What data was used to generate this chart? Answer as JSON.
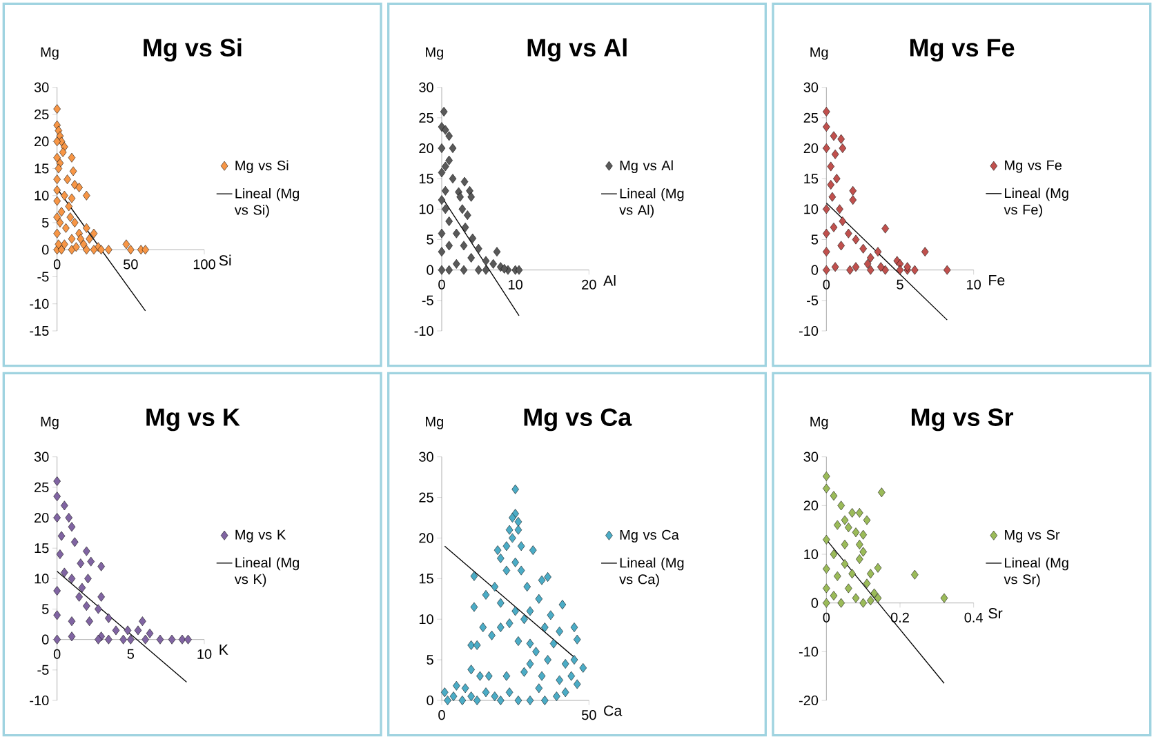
{
  "chart_data": [
    {
      "type": "scatter",
      "title": "Mg vs Si",
      "xlabel": "Si",
      "ylabel": "Mg",
      "xlim": [
        0,
        100
      ],
      "ylim": [
        -15,
        30
      ],
      "xticks": [
        0,
        50,
        100
      ],
      "yticks": [
        -15,
        -10,
        -5,
        0,
        5,
        10,
        15,
        20,
        25,
        30
      ],
      "marker": "diamond",
      "legend": "right",
      "series": [
        {
          "name": "Mg vs Si",
          "color": "#f79646",
          "x": [
            0,
            0,
            1,
            2,
            3,
            5,
            4,
            10,
            2,
            1,
            11,
            7,
            12,
            15,
            20,
            0,
            5,
            10,
            8,
            3,
            9,
            12,
            2,
            6,
            20,
            25,
            15,
            10,
            22,
            5,
            18,
            28,
            30,
            35,
            47,
            50,
            57,
            60,
            0,
            3,
            10,
            20,
            25,
            0,
            0,
            0,
            0,
            0,
            0,
            1,
            13,
            16
          ],
          "values": [
            26,
            23,
            22,
            21,
            20,
            19,
            18,
            17,
            16,
            15,
            14.5,
            13,
            12,
            11.5,
            10,
            11,
            10,
            9.5,
            8,
            7,
            6,
            5,
            5,
            4,
            4,
            3,
            3,
            2,
            2,
            1,
            1,
            0.5,
            0,
            0,
            1,
            0,
            0,
            0,
            0,
            0,
            0,
            0,
            0,
            3,
            6,
            9,
            13,
            17,
            20,
            1,
            0.5,
            2
          ]
        },
        {
          "name": "Lineal (Mg vs Si)",
          "type": "line",
          "marker": "none",
          "color": "#000000",
          "x": [
            0,
            60
          ],
          "values": [
            11.3,
            -11.3
          ]
        }
      ]
    },
    {
      "type": "scatter",
      "title": "Mg vs Al",
      "xlabel": "Al",
      "ylabel": "Mg",
      "xlim": [
        0,
        20
      ],
      "ylim": [
        -10,
        30
      ],
      "xticks": [
        0,
        10,
        20
      ],
      "yticks": [
        -10,
        -5,
        0,
        5,
        10,
        15,
        20,
        25,
        30
      ],
      "marker": "diamond",
      "legend": "right",
      "series": [
        {
          "name": "Mg vs Al",
          "color": "#595959",
          "x": [
            0.3,
            0,
            0.5,
            1,
            1.5,
            1,
            0.5,
            0,
            1.5,
            3.1,
            2.3,
            3.8,
            4,
            2.5,
            0,
            2.8,
            3.5,
            0.5,
            1,
            3.2,
            2,
            4.2,
            5,
            3,
            1,
            7.5,
            6,
            7,
            8,
            9,
            10,
            10.5,
            5,
            3,
            1,
            0,
            2,
            0,
            0,
            0.5,
            0,
            4,
            6,
            8.5
          ],
          "values": [
            26,
            23.5,
            23,
            22,
            20,
            18,
            17,
            16,
            15,
            14.5,
            12.8,
            13,
            12,
            12,
            11.5,
            10,
            9,
            10,
            8,
            7,
            6,
            5.2,
            3.5,
            4,
            4,
            3,
            1.5,
            1,
            0.5,
            0,
            0,
            0,
            0,
            0,
            0,
            0,
            1,
            3,
            6,
            13,
            20,
            2,
            0,
            0.2
          ]
        },
        {
          "name": "Lineal (Mg vs Al)",
          "type": "line",
          "marker": "none",
          "color": "#000000",
          "x": [
            0,
            10.5
          ],
          "values": [
            12,
            -7.5
          ]
        }
      ]
    },
    {
      "type": "scatter",
      "title": "Mg vs Fe",
      "xlabel": "Fe",
      "ylabel": "Mg",
      "xlim": [
        0,
        10
      ],
      "ylim": [
        -10,
        30
      ],
      "xticks": [
        0,
        5,
        10
      ],
      "yticks": [
        -10,
        -5,
        0,
        5,
        10,
        15,
        20,
        25,
        30
      ],
      "marker": "diamond",
      "legend": "right",
      "series": [
        {
          "name": "Mg vs Fe",
          "color": "#c0504d",
          "x": [
            0,
            0,
            0.5,
            1,
            1.1,
            0.6,
            0.3,
            0.7,
            1.8,
            1.8,
            0.9,
            0.4,
            0,
            1.1,
            0.5,
            4,
            1.5,
            2,
            1,
            2.5,
            3.5,
            6.7,
            3,
            4.8,
            5,
            2,
            1.6,
            3,
            4,
            5,
            5.5,
            6,
            8.2,
            0,
            0.6,
            0,
            0,
            0.3,
            0,
            2.8,
            3.7,
            5.5
          ],
          "values": [
            26,
            23.5,
            22,
            21.5,
            20,
            19,
            17,
            15,
            13,
            11.5,
            10,
            12,
            10,
            8,
            7,
            6.8,
            6,
            5,
            4,
            3.5,
            3,
            3,
            2,
            1.5,
            1,
            0.5,
            0,
            0,
            0,
            0,
            0,
            0,
            0,
            0,
            0.5,
            3,
            6,
            14,
            20,
            1,
            0.5,
            0.5
          ]
        },
        {
          "name": "Lineal (Mg vs Fe)",
          "type": "line",
          "marker": "none",
          "color": "#000000",
          "x": [
            0,
            8.2
          ],
          "values": [
            11,
            -8.2
          ]
        }
      ]
    },
    {
      "type": "scatter",
      "title": "Mg vs K",
      "xlabel": "K",
      "ylabel": "Mg",
      "xlim": [
        0,
        10
      ],
      "ylim": [
        -10,
        30
      ],
      "xticks": [
        0,
        5,
        10
      ],
      "yticks": [
        -10,
        -5,
        0,
        5,
        10,
        15,
        20,
        25,
        30
      ],
      "marker": "diamond",
      "legend": "right",
      "series": [
        {
          "name": "Mg vs K",
          "color": "#8064a2",
          "x": [
            0,
            0,
            0.5,
            0.8,
            1,
            1.2,
            0.3,
            2,
            1.6,
            2.3,
            3,
            2.1,
            1,
            0.5,
            1.7,
            1.5,
            3,
            2,
            2.8,
            3.5,
            2.2,
            1,
            5.8,
            4.8,
            5.5,
            6.3,
            4,
            3,
            3.5,
            4.5,
            5,
            6,
            7,
            7.8,
            8.5,
            8.9,
            0,
            1,
            0,
            0,
            0.2,
            0,
            2.8
          ],
          "values": [
            26,
            23.5,
            22,
            20,
            18.5,
            16,
            17,
            14.5,
            12.5,
            12.8,
            12,
            10,
            10,
            11,
            8.5,
            7,
            7,
            5.5,
            5,
            3.5,
            3,
            3,
            3,
            1.5,
            1.5,
            1,
            1.5,
            0.5,
            0,
            0,
            0,
            0,
            0,
            0,
            0,
            0,
            0,
            0.5,
            4,
            8,
            14,
            20,
            0
          ]
        },
        {
          "name": "Lineal (Mg vs K)",
          "type": "line",
          "marker": "none",
          "color": "#000000",
          "x": [
            0,
            8.8
          ],
          "values": [
            11.2,
            -7
          ]
        }
      ]
    },
    {
      "type": "scatter",
      "title": "Mg vs Ca",
      "xlabel": "Ca",
      "ylabel": "Mg",
      "xlim": [
        0,
        50
      ],
      "ylim": [
        0,
        30
      ],
      "xticks": [
        0,
        50
      ],
      "yticks": [
        0,
        5,
        10,
        15,
        20,
        25,
        30
      ],
      "marker": "diamond",
      "legend": "right",
      "series": [
        {
          "name": "Mg vs Ca",
          "color": "#4bacc6",
          "x": [
            25,
            25,
            24,
            26,
            23,
            26,
            24,
            22,
            27,
            31,
            19,
            20,
            25,
            22,
            27,
            11,
            34,
            36,
            18,
            29,
            15,
            20,
            25,
            33,
            41,
            11,
            30,
            37,
            14,
            20,
            28,
            35,
            40,
            45,
            46,
            23,
            17,
            26,
            30,
            38,
            10,
            12,
            32,
            45,
            36,
            42,
            30,
            10,
            22,
            28,
            34,
            40,
            44,
            13,
            16,
            5,
            1,
            4,
            7,
            10,
            12,
            15,
            18,
            20,
            23,
            26,
            30,
            35,
            39,
            42,
            2,
            8,
            33,
            48,
            46
          ],
          "values": [
            26,
            23,
            22.5,
            22,
            21,
            21,
            20,
            19,
            19,
            18.5,
            18.5,
            17.5,
            17,
            16,
            16,
            15.3,
            14.8,
            15.2,
            14,
            14,
            13,
            12,
            11,
            12.5,
            11.8,
            11.5,
            11,
            10.5,
            9,
            9,
            10,
            9,
            8.5,
            9,
            7.5,
            9.5,
            8,
            7.3,
            7,
            7,
            6.8,
            6.8,
            6,
            5,
            5,
            4.5,
            4.5,
            3.8,
            3,
            3.5,
            3,
            2.5,
            3,
            3,
            3,
            1.8,
            1,
            0.5,
            0,
            0.5,
            0,
            1,
            0.5,
            0,
            1,
            0,
            0,
            0,
            0.5,
            1,
            0,
            1.5,
            1.5,
            4,
            2
          ]
        },
        {
          "name": "Lineal (Mg vs Ca)",
          "type": "line",
          "marker": "none",
          "color": "#000000",
          "x": [
            1,
            46
          ],
          "values": [
            19,
            5
          ]
        }
      ]
    },
    {
      "type": "scatter",
      "title": "Mg vs Sr",
      "xlabel": "Sr",
      "ylabel": "Mg",
      "xlim": [
        0,
        0.4
      ],
      "ylim": [
        -20,
        30
      ],
      "xticks": [
        0,
        0.2,
        0.4
      ],
      "yticks": [
        -20,
        -10,
        0,
        10,
        20,
        30
      ],
      "marker": "diamond",
      "legend": "right",
      "series": [
        {
          "name": "Mg vs Sr",
          "color": "#9bbb59",
          "x": [
            0,
            0,
            0.15,
            0.02,
            0.04,
            0.07,
            0.09,
            0.11,
            0.05,
            0.03,
            0.06,
            0.1,
            0.08,
            0.05,
            0,
            0.09,
            0.1,
            0.02,
            0.05,
            0.09,
            0.14,
            0.12,
            0,
            0.03,
            0.07,
            0.24,
            0.11,
            0.06,
            0,
            0.13,
            0.14,
            0.32,
            0.08,
            0.1,
            0.04,
            0,
            0.02,
            0.12
          ],
          "values": [
            26,
            23.5,
            22.7,
            22,
            20,
            18.5,
            18.5,
            17,
            17,
            16,
            15.5,
            14,
            14.5,
            12,
            13,
            12,
            10.5,
            10,
            8,
            9,
            7.2,
            6,
            7,
            5.5,
            6,
            5.8,
            4,
            3,
            3,
            2,
            1,
            1,
            1,
            0,
            0,
            0,
            1.5,
            0.5
          ]
        },
        {
          "name": "Lineal (Mg vs Sr)",
          "type": "line",
          "marker": "none",
          "color": "#000000",
          "x": [
            0,
            0.32
          ],
          "values": [
            13,
            -16.5
          ]
        }
      ]
    }
  ]
}
